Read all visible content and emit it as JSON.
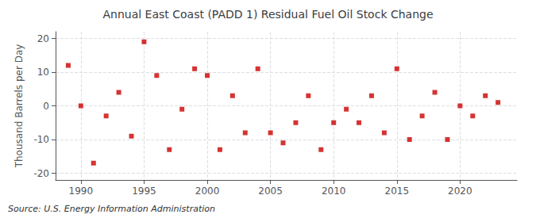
{
  "chart_data": {
    "type": "scatter",
    "title": "Annual East Coast (PADD 1) Residual Fuel Oil Stock Change",
    "ylabel": "Thousand Barrels per Day",
    "source": "Source: U.S. Energy Information Administration",
    "x": [
      1989,
      1990,
      1991,
      1992,
      1993,
      1994,
      1995,
      1996,
      1997,
      1998,
      1999,
      2000,
      2001,
      2002,
      2003,
      2004,
      2005,
      2006,
      2007,
      2008,
      2009,
      2010,
      2011,
      2012,
      2013,
      2014,
      2015,
      2016,
      2017,
      2018,
      2019,
      2020,
      2021,
      2022,
      2023
    ],
    "values": [
      12,
      0,
      -17,
      -3,
      4,
      -9,
      19,
      9,
      -13,
      -1,
      11,
      9,
      -13,
      3,
      -8,
      11,
      -8,
      -11,
      -5,
      3,
      -13,
      -5,
      -1,
      -5,
      3,
      -8,
      11,
      -10,
      -3,
      4,
      -10,
      0,
      -3,
      3,
      1
    ],
    "color": "#cc0000",
    "marker": "square",
    "xlim": [
      1988.0,
      2024.5
    ],
    "ylim": [
      -22,
      22
    ],
    "yticks": [
      -20,
      -10,
      0,
      10,
      20
    ],
    "xticks": [
      1990,
      1995,
      2000,
      2005,
      2010,
      2015,
      2020
    ],
    "grid": true
  }
}
